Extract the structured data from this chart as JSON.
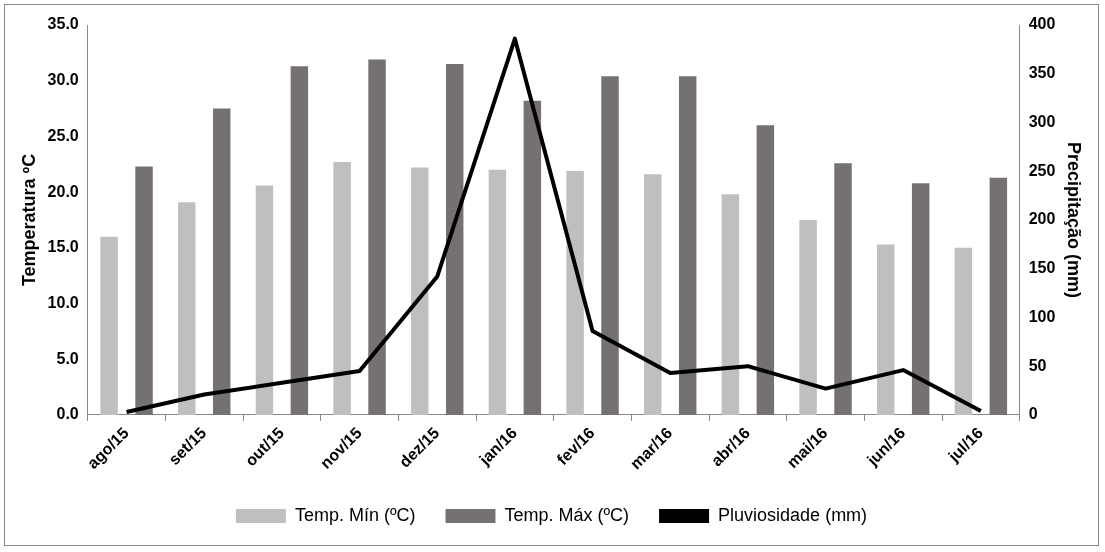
{
  "chart_data": {
    "type": "bar",
    "xlabel": null,
    "ylabel": "Temperatura ºC",
    "y2label": "Precipitação (mm)",
    "categories": [
      "ago/15",
      "set/15",
      "out/15",
      "nov/15",
      "dez/15",
      "jan/16",
      "fev/16",
      "mar/16",
      "abr/16",
      "mai/16",
      "jun/16",
      "jul/16"
    ],
    "series": [
      {
        "name": "Temp. Mín (ºC)",
        "color": "#bfbfbf",
        "values": [
          16.0,
          19.1,
          20.6,
          22.7,
          22.2,
          22.0,
          21.9,
          21.6,
          19.8,
          17.5,
          15.3,
          15.0
        ]
      },
      {
        "name": "Temp. Máx (ºC)",
        "color": "#767171",
        "values": [
          22.3,
          27.5,
          31.3,
          31.9,
          31.5,
          28.2,
          30.4,
          30.4,
          26.0,
          22.6,
          20.8,
          21.3
        ]
      },
      {
        "name": "Pluviosidade (mm)",
        "type": "line",
        "axis": "y2",
        "color": "#000000",
        "values": [
          3,
          21,
          33,
          45,
          142,
          386,
          86,
          43,
          50,
          27,
          46,
          4
        ]
      }
    ],
    "ylim": [
      0,
      35
    ],
    "yticks": [
      {
        "value": 0,
        "label": "0.0"
      },
      {
        "value": 5,
        "label": "5.0"
      },
      {
        "value": 10,
        "label": "10.0"
      },
      {
        "value": 15,
        "label": "15.0"
      },
      {
        "value": 20,
        "label": "20.0"
      },
      {
        "value": 25,
        "label": "25.0"
      },
      {
        "value": 30,
        "label": "30.0"
      },
      {
        "value": 35,
        "label": "35.0"
      }
    ],
    "y2lim": [
      0,
      400
    ],
    "y2ticks": [
      0,
      50,
      100,
      150,
      200,
      250,
      300,
      350,
      400
    ],
    "grid": false,
    "legend": "bottom",
    "marker": "none"
  }
}
